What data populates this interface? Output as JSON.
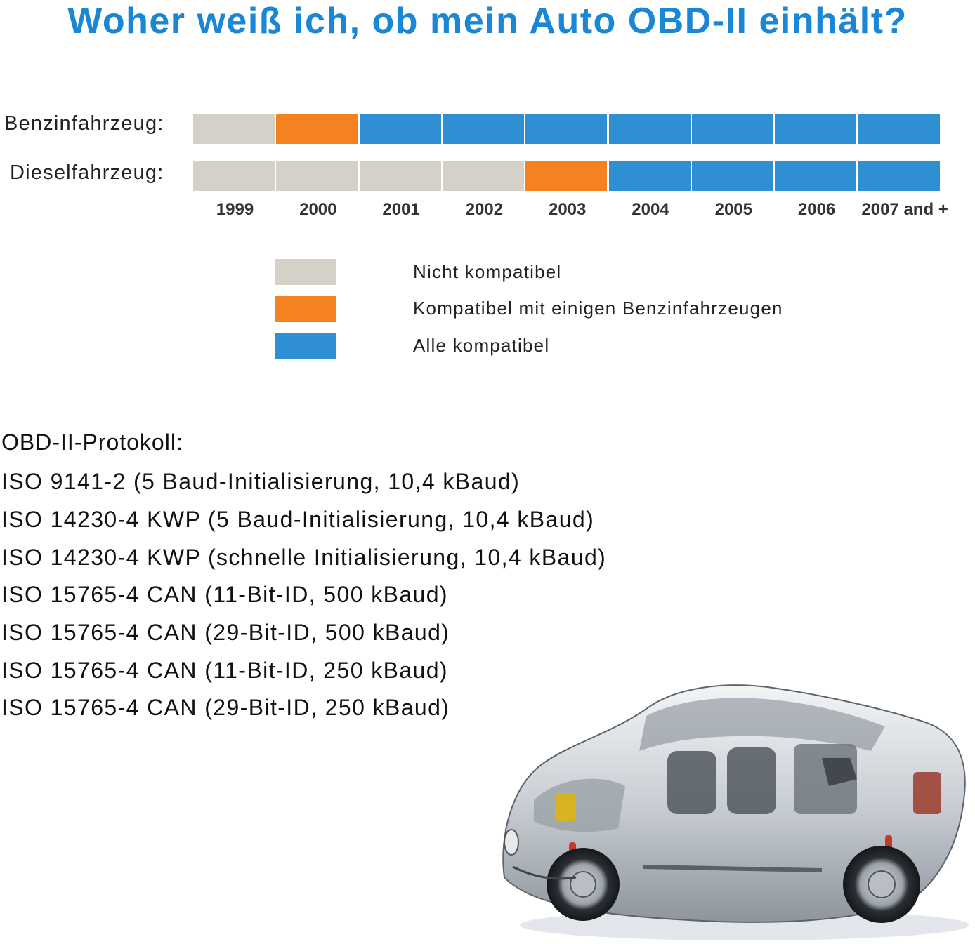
{
  "title": "Woher weiß ich, ob mein Auto OBD-II einhält?",
  "colors": {
    "incompatible": "#d4d1c8",
    "partial": "#f58220",
    "compatible": "#2f8fd3",
    "title": "#1a86d6"
  },
  "chart_data": {
    "type": "table",
    "categories": [
      "1999",
      "2000",
      "2001",
      "2002",
      "2003",
      "2004",
      "2005",
      "2006",
      "2007 and +"
    ],
    "series": [
      {
        "name": "Benzinfahrzeug",
        "values": [
          "incompatible",
          "partial",
          "compatible",
          "compatible",
          "compatible",
          "compatible",
          "compatible",
          "compatible",
          "compatible"
        ]
      },
      {
        "name": "Dieselfahrzeug",
        "values": [
          "incompatible",
          "incompatible",
          "incompatible",
          "incompatible",
          "partial",
          "compatible",
          "compatible",
          "compatible",
          "compatible"
        ]
      }
    ]
  },
  "rows": {
    "petrol_label": "Benzinfahrzeug:",
    "diesel_label": "Dieselfahrzeug:"
  },
  "legend": {
    "incompatible": "Nicht kompatibel",
    "partial": "Kompatibel mit einigen Benzinfahrzeugen",
    "compatible": "Alle kompatibel"
  },
  "protocols": {
    "heading": "OBD-II-Protokoll:",
    "items": [
      "ISO 9141-2 (5 Baud-Initialisierung, 10,4 kBaud)",
      "ISO 14230-4 KWP (5 Baud-Initialisierung, 10,4 kBaud)",
      "ISO 14230-4 KWP (schnelle Initialisierung, 10,4 kBaud)",
      "ISO 15765-4 CAN (11-Bit-ID, 500 kBaud)",
      "ISO 15765-4 CAN (29-Bit-ID, 500 kBaud)",
      "ISO 15765-4 CAN (11-Bit-ID, 250 kBaud)",
      "ISO 15765-4 CAN (29-Bit-ID, 250 kBaud)"
    ]
  },
  "illustration": "car-cutaway-illustration"
}
